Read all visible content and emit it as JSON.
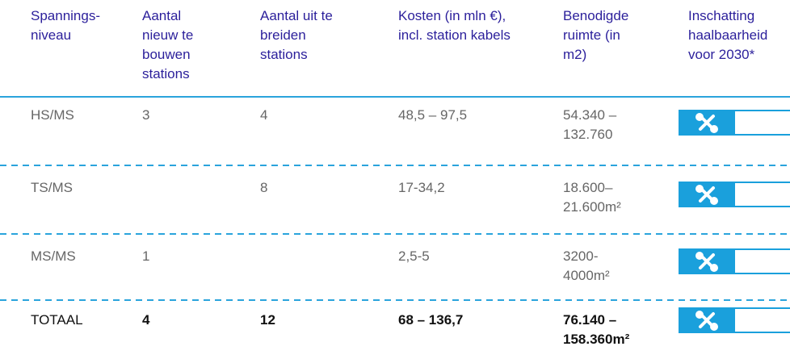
{
  "table": {
    "header": [
      [
        "Spannings-",
        "niveau"
      ],
      [
        "Aantal",
        "nieuw te",
        "bouwen",
        "stations"
      ],
      [
        "Aantal uit te",
        "breiden",
        "stations"
      ],
      [
        "Kosten (in mln €),",
        "incl. station kabels"
      ],
      [
        "Benodigde",
        "ruimte (in",
        "m2)"
      ],
      [
        "Inschatting",
        "haalbaarheid",
        "voor 2030*"
      ]
    ],
    "rows": [
      [
        [
          "HS/MS"
        ],
        [
          "3"
        ],
        [
          "4"
        ],
        [
          "48,5 – 97,5"
        ],
        [
          "54.340 –",
          "132.760"
        ]
      ],
      [
        [
          "TS/MS"
        ],
        null,
        [
          "8"
        ],
        [
          "17-34,2"
        ],
        [
          "18.600–",
          "21.600m²"
        ]
      ],
      [
        [
          "MS/MS"
        ],
        [
          "1"
        ],
        null,
        [
          "2,5-5"
        ],
        [
          "3200-",
          "4000m²"
        ]
      ],
      [
        [
          "TOTAAL"
        ],
        [
          "4"
        ],
        [
          "12"
        ],
        [
          "68 – 136,7"
        ],
        [
          "76.140 –",
          "158.360m²"
        ]
      ]
    ]
  }
}
